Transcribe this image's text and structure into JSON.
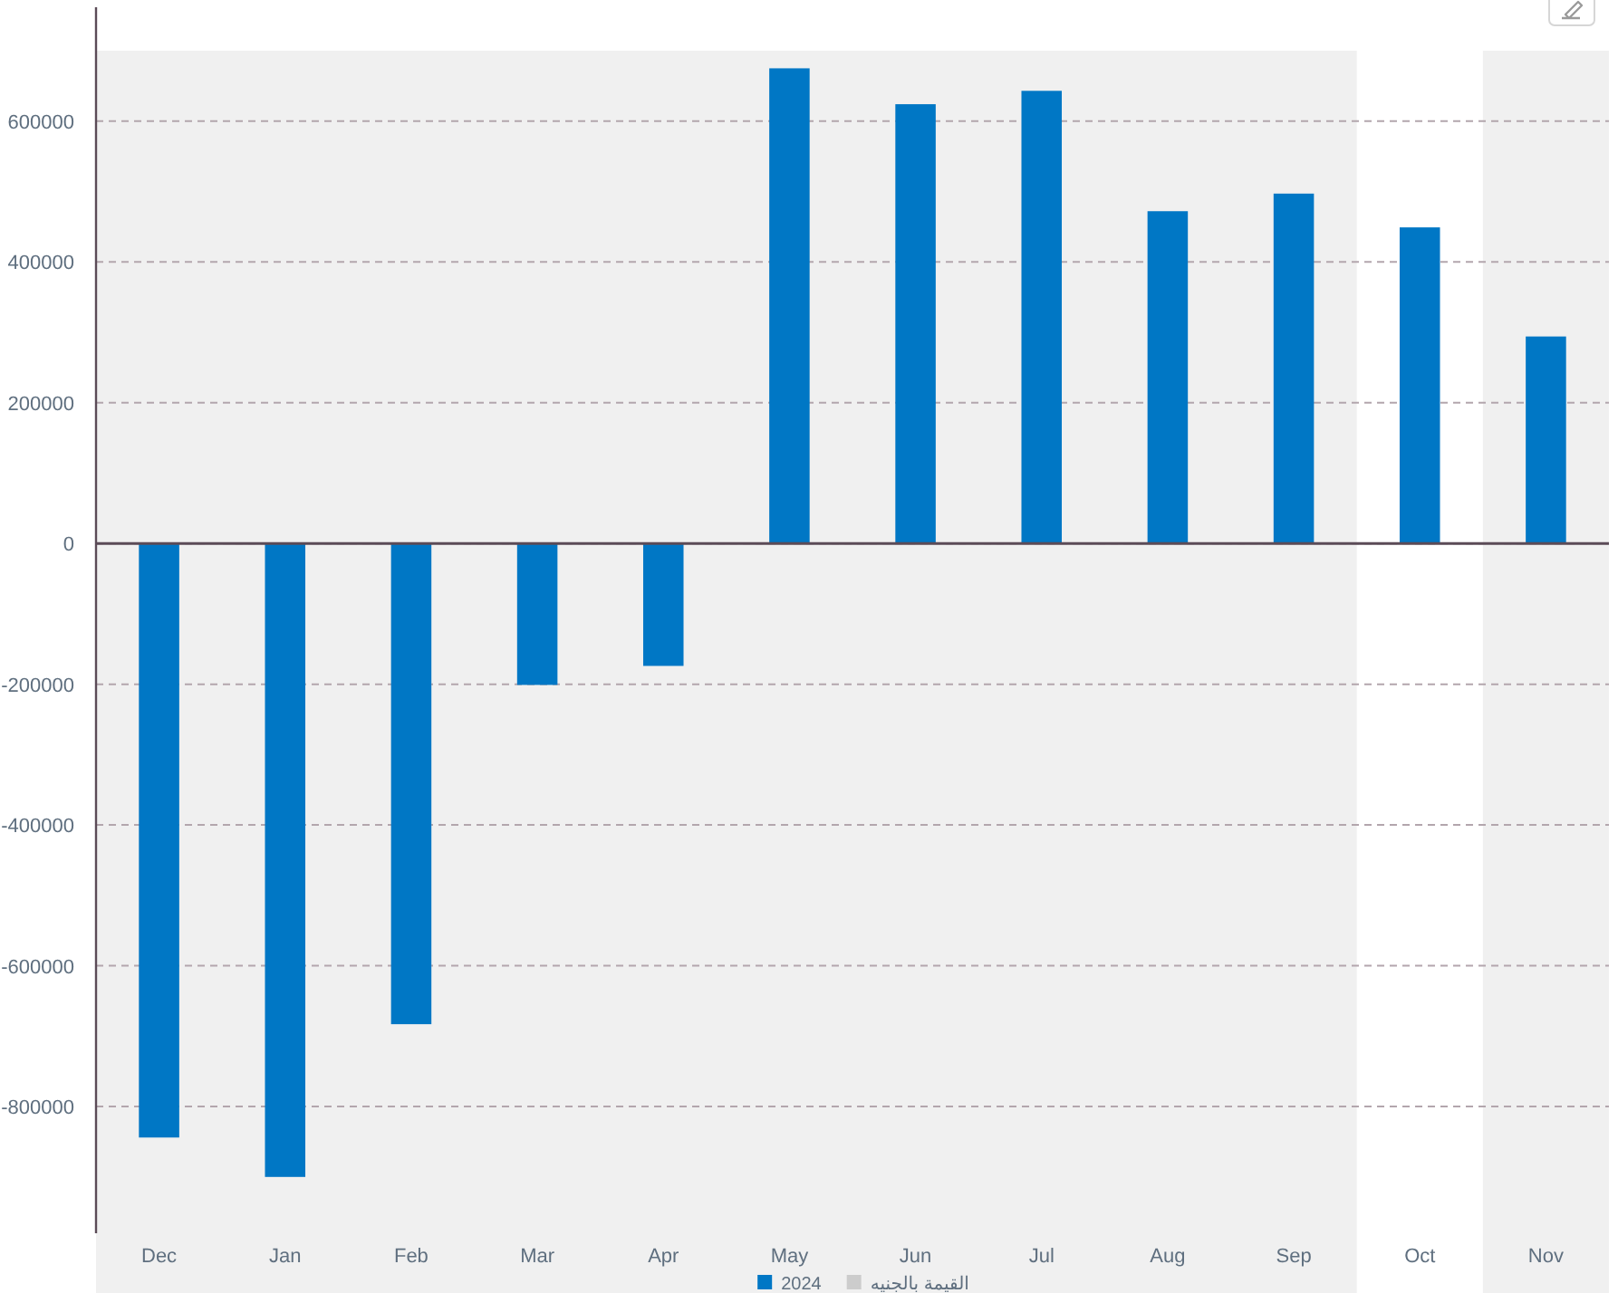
{
  "chart_data": {
    "type": "bar",
    "categories": [
      "Dec",
      "Jan",
      "Feb",
      "Mar",
      "Apr",
      "May",
      "Jun",
      "Jul",
      "Aug",
      "Sep",
      "Oct",
      "Nov"
    ],
    "series": [
      {
        "name": "2024",
        "color": "#0077c5",
        "values": [
          -844000,
          -900000,
          -683000,
          -201000,
          -174000,
          675000,
          624000,
          643000,
          472000,
          497000,
          449000,
          294000
        ]
      },
      {
        "name": "القيمة بالجنيه",
        "color": "#cccccc",
        "values": [
          null,
          null,
          null,
          null,
          null,
          null,
          null,
          null,
          null,
          null,
          null,
          null
        ]
      }
    ],
    "ylim": [
      -980000,
      700000
    ],
    "yticks": [
      -800000,
      -600000,
      -400000,
      -200000,
      0,
      200000,
      400000,
      600000
    ],
    "grid": "y",
    "legend": "bottom",
    "ref_lines": [
      {
        "axis": "y",
        "value": 0,
        "color": "#5b4b57"
      }
    ],
    "bands": [
      {
        "axis": "x",
        "from": "Dec",
        "to": "Sep",
        "color": "#f0f0f0"
      },
      {
        "axis": "x",
        "from": "Nov",
        "to": "Nov",
        "color": "#f0f0f0"
      }
    ]
  }
}
